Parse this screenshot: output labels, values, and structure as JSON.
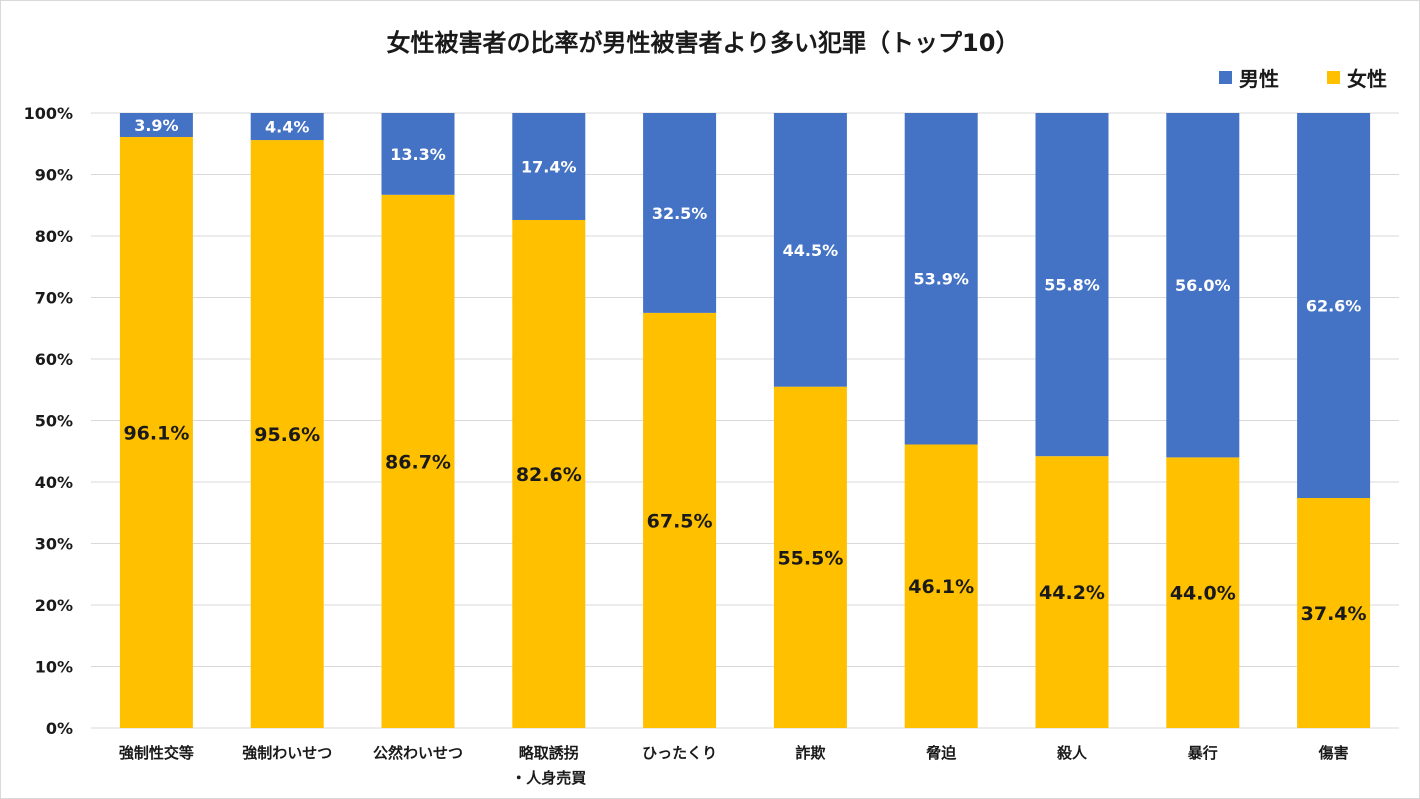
{
  "chart_data": {
    "type": "bar",
    "stacked": true,
    "title": "女性被害者の比率が男性被害者より多い犯罪（トップ10）",
    "categories": [
      [
        "強制性交等"
      ],
      [
        "強制わいせつ"
      ],
      [
        "公然わいせつ"
      ],
      [
        "略取誘拐",
        "・人身売買"
      ],
      [
        "ひったくり"
      ],
      [
        "詐欺"
      ],
      [
        "脅迫"
      ],
      [
        "殺人"
      ],
      [
        "暴行"
      ],
      [
        "傷害"
      ]
    ],
    "series": [
      {
        "name": "女性",
        "color": "#FFC000",
        "values": [
          96.1,
          95.6,
          86.7,
          82.6,
          67.5,
          55.5,
          46.1,
          44.2,
          44.0,
          37.4
        ],
        "labels": [
          "96.1%",
          "95.6%",
          "86.7%",
          "82.6%",
          "67.5%",
          "55.5%",
          "46.1%",
          "44.2%",
          "44.0%",
          "37.4%"
        ]
      },
      {
        "name": "男性",
        "color": "#4472C4",
        "values": [
          3.9,
          4.4,
          13.3,
          17.4,
          32.5,
          44.5,
          53.9,
          55.8,
          56.0,
          62.6
        ],
        "labels": [
          "3.9%",
          "4.4%",
          "13.3%",
          "17.4%",
          "32.5%",
          "44.5%",
          "53.9%",
          "55.8%",
          "56.0%",
          "62.6%"
        ]
      }
    ],
    "legend": {
      "position": "top-right",
      "order": [
        "男性",
        "女性"
      ]
    },
    "ylim": [
      0,
      100
    ],
    "yticks": [
      "0%",
      "10%",
      "20%",
      "30%",
      "40%",
      "50%",
      "60%",
      "70%",
      "80%",
      "90%",
      "100%"
    ],
    "grid": true,
    "xlabel": "",
    "ylabel": ""
  }
}
